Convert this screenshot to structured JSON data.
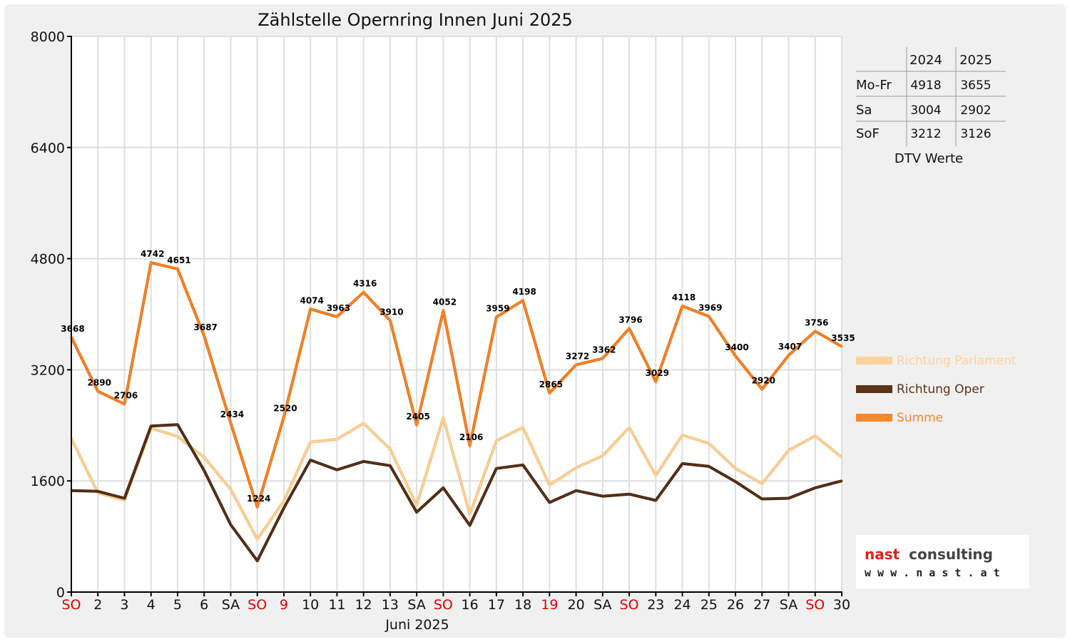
{
  "colors": {
    "parlament": "#fcd29a",
    "oper": "#5c3317",
    "summe": "#f7882a",
    "holiday": "#e00000",
    "normal": "#111111"
  },
  "dtv_table": {
    "headers": [
      "",
      "2024",
      "2025"
    ],
    "rows": [
      [
        "Mo-Fr",
        "4918",
        "3655"
      ],
      [
        "Sa",
        "3004",
        "2902"
      ],
      [
        "SoF",
        "3212",
        "3126"
      ]
    ],
    "caption": "DTV Werte"
  },
  "logo": {
    "name_part1": "nast",
    "name_part2": "consulting",
    "url": "w w w . n a s t . a t"
  },
  "chart_data": {
    "type": "line",
    "title": "Zählstelle Opernring Innen Juni 2025",
    "xlabel": "Juni 2025",
    "ylabel": "",
    "ylim": [
      0,
      8000
    ],
    "yticks": [
      0,
      1600,
      3200,
      4800,
      6400,
      8000
    ],
    "grid": true,
    "legend_position": "right",
    "categories": [
      "SO",
      "2",
      "3",
      "4",
      "5",
      "6",
      "SA",
      "SO",
      "9",
      "10",
      "11",
      "12",
      "13",
      "SA",
      "SO",
      "16",
      "17",
      "18",
      "19",
      "20",
      "SA",
      "SO",
      "23",
      "24",
      "25",
      "26",
      "27",
      "SA",
      "SO",
      "30"
    ],
    "holiday_flags": [
      true,
      false,
      false,
      false,
      false,
      false,
      false,
      true,
      true,
      false,
      false,
      false,
      false,
      false,
      true,
      false,
      false,
      false,
      true,
      false,
      false,
      true,
      false,
      false,
      false,
      false,
      false,
      false,
      true,
      false
    ],
    "series": [
      {
        "name": "Richtung Parlament",
        "color_key": "parlament",
        "values": [
          2210,
          1430,
          1320,
          2360,
          2240,
          1940,
          1480,
          760,
          1310,
          2160,
          2200,
          2430,
          2060,
          1250,
          2510,
          1120,
          2180,
          2370,
          1540,
          1790,
          1960,
          2370,
          1680,
          2260,
          2140,
          1780,
          1560,
          2040,
          2250,
          1940
        ]
      },
      {
        "name": "Richtung Oper",
        "color_key": "oper",
        "values": [
          1460,
          1450,
          1350,
          2390,
          2410,
          1750,
          970,
          450,
          1210,
          1900,
          1760,
          1880,
          1820,
          1150,
          1500,
          960,
          1780,
          1830,
          1290,
          1460,
          1380,
          1410,
          1320,
          1850,
          1810,
          1590,
          1340,
          1350,
          1500,
          1600
        ]
      },
      {
        "name": "Summe",
        "color_key": "summe",
        "values": [
          3668,
          2890,
          2706,
          4742,
          4651,
          3687,
          2434,
          1224,
          2520,
          4074,
          3963,
          4316,
          3910,
          2405,
          4052,
          2106,
          3959,
          4198,
          2865,
          3272,
          3362,
          3796,
          3029,
          4118,
          3969,
          3400,
          2920,
          3407,
          3756,
          3535
        ],
        "labels": [
          "3668",
          "2890",
          "2706",
          "4742",
          "4651",
          "3687",
          "2434",
          "1224",
          "2520",
          "4074",
          "3963",
          "4316",
          "3910",
          "2405",
          "4052",
          "2106",
          "3959",
          "4198",
          "2865",
          "3272",
          "3362",
          "3796",
          "3029",
          "4118",
          "3969",
          "3400",
          "2920",
          "3407",
          "3756",
          "3535"
        ]
      }
    ]
  }
}
